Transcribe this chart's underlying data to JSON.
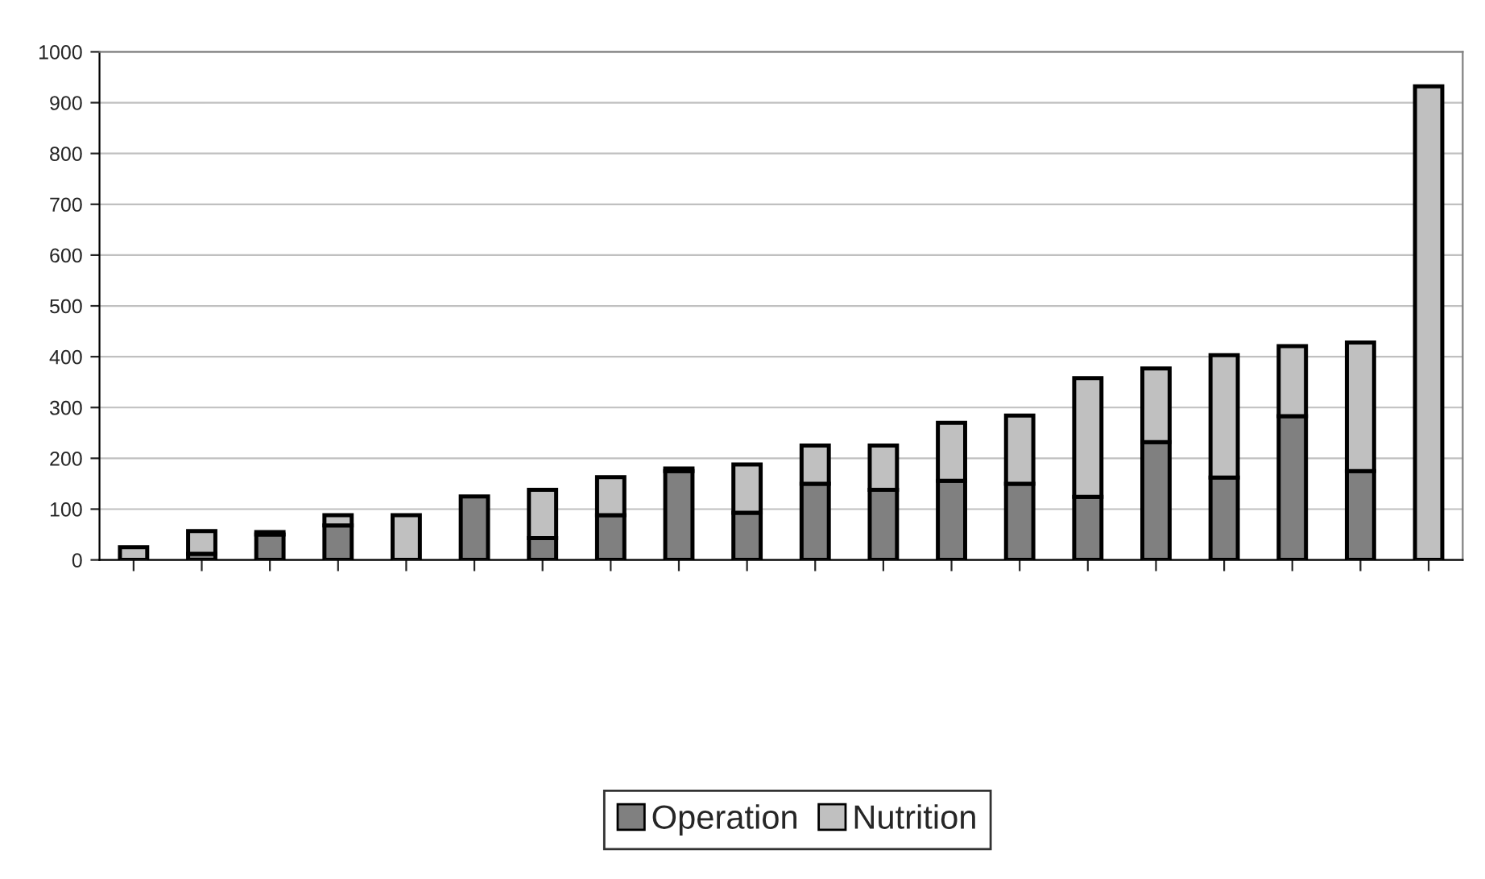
{
  "chart_data": {
    "type": "bar",
    "stacked": true,
    "categories": [
      null,
      null,
      null,
      null,
      null,
      null,
      null,
      null,
      null,
      null,
      null,
      null,
      null,
      null,
      null,
      null,
      null,
      null,
      null,
      null
    ],
    "series": [
      {
        "name": "Operation",
        "color": "#808080",
        "values": [
          0,
          12,
          50,
          68,
          0,
          125,
          43,
          88,
          175,
          93,
          150,
          138,
          156,
          150,
          124,
          232,
          162,
          283,
          175,
          0
        ]
      },
      {
        "name": "Nutrition",
        "color": "#c0c0c0",
        "values": [
          25,
          45,
          5,
          20,
          88,
          0,
          95,
          75,
          5,
          95,
          75,
          87,
          114,
          134,
          234,
          145,
          241,
          138,
          253,
          932
        ]
      }
    ],
    "ylim": [
      0,
      1000
    ],
    "yticks": [
      0,
      100,
      200,
      300,
      400,
      500,
      600,
      700,
      800,
      900,
      1000
    ],
    "grid": "y",
    "legend": "bottom"
  }
}
